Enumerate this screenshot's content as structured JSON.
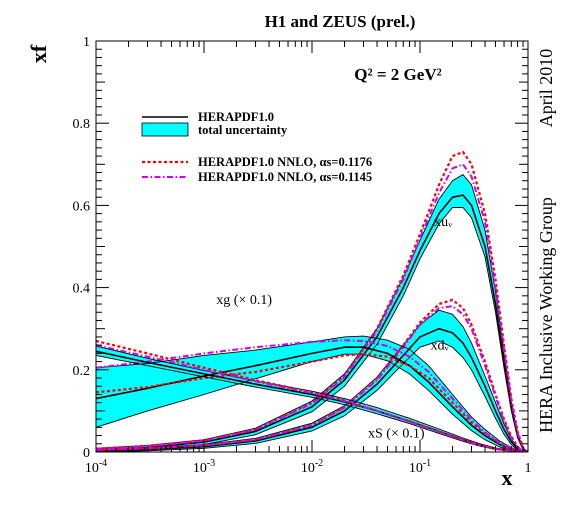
{
  "chart_data": {
    "type": "line",
    "title": "H1 and ZEUS (prel.)",
    "annotation": "Q² = 2 GeV²",
    "side_label_top": "April 2010",
    "side_label_bottom": "HERA Inclusive Working Group",
    "xlabel": "x",
    "ylabel": "xf",
    "x_scale": "log",
    "xlim": [
      0.0001,
      1
    ],
    "ylim": [
      0,
      1
    ],
    "x_ticks": [
      {
        "value": 0.0001,
        "base": "10",
        "exp": "-4"
      },
      {
        "value": 0.001,
        "base": "10",
        "exp": "-3"
      },
      {
        "value": 0.01,
        "base": "10",
        "exp": "-2"
      },
      {
        "value": 0.1,
        "base": "10",
        "exp": "-1"
      },
      {
        "value": 1,
        "base": "1",
        "exp": ""
      }
    ],
    "y_ticks": [
      {
        "value": 0,
        "label": "0"
      },
      {
        "value": 0.2,
        "label": "0.2"
      },
      {
        "value": 0.4,
        "label": "0.4"
      },
      {
        "value": 0.6,
        "label": "0.6"
      },
      {
        "value": 0.8,
        "label": "0.8"
      },
      {
        "value": 1,
        "label": "1"
      }
    ],
    "legend": [
      {
        "text": "HERAPDF1.0",
        "style": "central"
      },
      {
        "text": "total uncertainty",
        "style": "band"
      },
      {
        "text": "HERAPDF1.0 NNLO, αs=0.1176",
        "style": "nnlo1"
      },
      {
        "text": "HERAPDF1.0 NNLO, αs=0.1145",
        "style": "nnlo2"
      }
    ],
    "curve_labels": [
      {
        "text": "xuᵥ",
        "at": [
          0.135,
          0.55
        ]
      },
      {
        "text": "xdᵥ",
        "at": [
          0.125,
          0.25
        ]
      },
      {
        "text": "xg (× 0.1)",
        "at": [
          0.0013,
          0.36
        ]
      },
      {
        "text": "xS (× 0.1)",
        "at": [
          0.033,
          0.035
        ]
      }
    ],
    "colors": {
      "band": "#00ffff",
      "central": "#000000",
      "nnlo1": "#ff0000",
      "nnlo2": "#cc00ff"
    },
    "series": [
      {
        "id": "xuv",
        "x": [
          0.0001,
          0.0003,
          0.001,
          0.003,
          0.01,
          0.02,
          0.04,
          0.07,
          0.1,
          0.15,
          0.2,
          0.25,
          0.3,
          0.4,
          0.5,
          0.6,
          0.7,
          0.8,
          0.9,
          1.0
        ],
        "central": [
          0.005,
          0.011,
          0.024,
          0.05,
          0.11,
          0.175,
          0.28,
          0.4,
          0.49,
          0.58,
          0.62,
          0.625,
          0.6,
          0.5,
          0.36,
          0.22,
          0.11,
          0.04,
          0.007,
          0
        ],
        "lo": [
          0.002,
          0.007,
          0.018,
          0.042,
          0.098,
          0.16,
          0.262,
          0.38,
          0.47,
          0.555,
          0.595,
          0.595,
          0.57,
          0.475,
          0.34,
          0.205,
          0.1,
          0.035,
          0.005,
          0
        ],
        "hi": [
          0.009,
          0.016,
          0.03,
          0.058,
          0.124,
          0.19,
          0.3,
          0.425,
          0.515,
          0.615,
          0.66,
          0.675,
          0.65,
          0.54,
          0.39,
          0.24,
          0.12,
          0.045,
          0.009,
          0
        ],
        "nnlo1": [
          0.008,
          0.015,
          0.028,
          0.055,
          0.12,
          0.185,
          0.3,
          0.43,
          0.53,
          0.65,
          0.72,
          0.73,
          0.7,
          0.58,
          0.42,
          0.26,
          0.13,
          0.05,
          0.01,
          0
        ],
        "nnlo2": [
          0.007,
          0.014,
          0.027,
          0.054,
          0.118,
          0.182,
          0.295,
          0.42,
          0.52,
          0.63,
          0.69,
          0.7,
          0.67,
          0.56,
          0.4,
          0.25,
          0.125,
          0.047,
          0.009,
          0
        ]
      },
      {
        "id": "xdv",
        "x": [
          0.0001,
          0.0003,
          0.001,
          0.003,
          0.01,
          0.02,
          0.04,
          0.07,
          0.1,
          0.15,
          0.2,
          0.25,
          0.3,
          0.4,
          0.5,
          0.6,
          0.7,
          0.8,
          0.9,
          1.0
        ],
        "central": [
          0.003,
          0.006,
          0.013,
          0.027,
          0.06,
          0.1,
          0.165,
          0.235,
          0.28,
          0.3,
          0.29,
          0.265,
          0.23,
          0.16,
          0.1,
          0.055,
          0.025,
          0.008,
          0.001,
          0
        ],
        "lo": [
          0.001,
          0.003,
          0.009,
          0.021,
          0.051,
          0.088,
          0.15,
          0.215,
          0.255,
          0.27,
          0.255,
          0.23,
          0.2,
          0.135,
          0.082,
          0.043,
          0.018,
          0.005,
          0.001,
          0
        ],
        "hi": [
          0.006,
          0.01,
          0.018,
          0.033,
          0.07,
          0.113,
          0.182,
          0.26,
          0.31,
          0.345,
          0.335,
          0.305,
          0.265,
          0.185,
          0.12,
          0.068,
          0.032,
          0.011,
          0.002,
          0
        ],
        "nnlo1": [
          0.005,
          0.009,
          0.016,
          0.03,
          0.066,
          0.11,
          0.18,
          0.26,
          0.315,
          0.36,
          0.37,
          0.35,
          0.31,
          0.22,
          0.14,
          0.08,
          0.038,
          0.013,
          0.002,
          0
        ],
        "nnlo2": [
          0.005,
          0.009,
          0.016,
          0.03,
          0.065,
          0.108,
          0.175,
          0.255,
          0.31,
          0.35,
          0.355,
          0.335,
          0.3,
          0.21,
          0.135,
          0.075,
          0.035,
          0.012,
          0.002,
          0
        ]
      },
      {
        "id": "xg",
        "x": [
          0.0001,
          0.0003,
          0.001,
          0.003,
          0.01,
          0.02,
          0.03,
          0.05,
          0.08,
          0.12,
          0.2,
          0.3,
          0.4,
          0.55,
          0.7,
          0.85,
          1.0
        ],
        "central": [
          0.13,
          0.155,
          0.185,
          0.21,
          0.24,
          0.255,
          0.255,
          0.24,
          0.21,
          0.17,
          0.11,
          0.065,
          0.04,
          0.018,
          0.007,
          0.002,
          0
        ],
        "lo": [
          0.06,
          0.1,
          0.14,
          0.178,
          0.22,
          0.238,
          0.238,
          0.222,
          0.19,
          0.15,
          0.092,
          0.052,
          0.03,
          0.012,
          0.004,
          0.001,
          0
        ],
        "hi": [
          0.205,
          0.215,
          0.235,
          0.248,
          0.268,
          0.28,
          0.282,
          0.272,
          0.25,
          0.21,
          0.14,
          0.085,
          0.055,
          0.026,
          0.011,
          0.003,
          0
        ],
        "nnlo1": [
          0.145,
          0.158,
          0.18,
          0.195,
          0.22,
          0.235,
          0.238,
          0.232,
          0.21,
          0.18,
          0.12,
          0.072,
          0.044,
          0.02,
          0.008,
          0.002,
          0
        ],
        "nnlo2": [
          0.205,
          0.22,
          0.24,
          0.255,
          0.268,
          0.272,
          0.27,
          0.258,
          0.232,
          0.195,
          0.13,
          0.078,
          0.048,
          0.022,
          0.009,
          0.002,
          0
        ]
      },
      {
        "id": "xS",
        "x": [
          0.0001,
          0.0003,
          0.001,
          0.003,
          0.01,
          0.02,
          0.04,
          0.08,
          0.15,
          0.25,
          0.35,
          0.5,
          0.7,
          0.85,
          1.0
        ],
        "central": [
          0.245,
          0.218,
          0.19,
          0.165,
          0.14,
          0.122,
          0.1,
          0.075,
          0.05,
          0.03,
          0.018,
          0.008,
          0.003,
          0.001,
          0
        ],
        "lo": [
          0.235,
          0.21,
          0.183,
          0.158,
          0.133,
          0.115,
          0.093,
          0.069,
          0.045,
          0.026,
          0.015,
          0.006,
          0.002,
          0.0005,
          0
        ],
        "hi": [
          0.258,
          0.228,
          0.198,
          0.173,
          0.148,
          0.13,
          0.108,
          0.082,
          0.056,
          0.034,
          0.021,
          0.01,
          0.004,
          0.001,
          0
        ],
        "nnlo1": [
          0.27,
          0.24,
          0.205,
          0.175,
          0.145,
          0.125,
          0.1,
          0.075,
          0.05,
          0.03,
          0.018,
          0.008,
          0.003,
          0.001,
          0
        ],
        "nnlo2": [
          0.26,
          0.232,
          0.2,
          0.172,
          0.143,
          0.124,
          0.1,
          0.074,
          0.049,
          0.029,
          0.017,
          0.007,
          0.003,
          0.001,
          0
        ]
      }
    ]
  }
}
